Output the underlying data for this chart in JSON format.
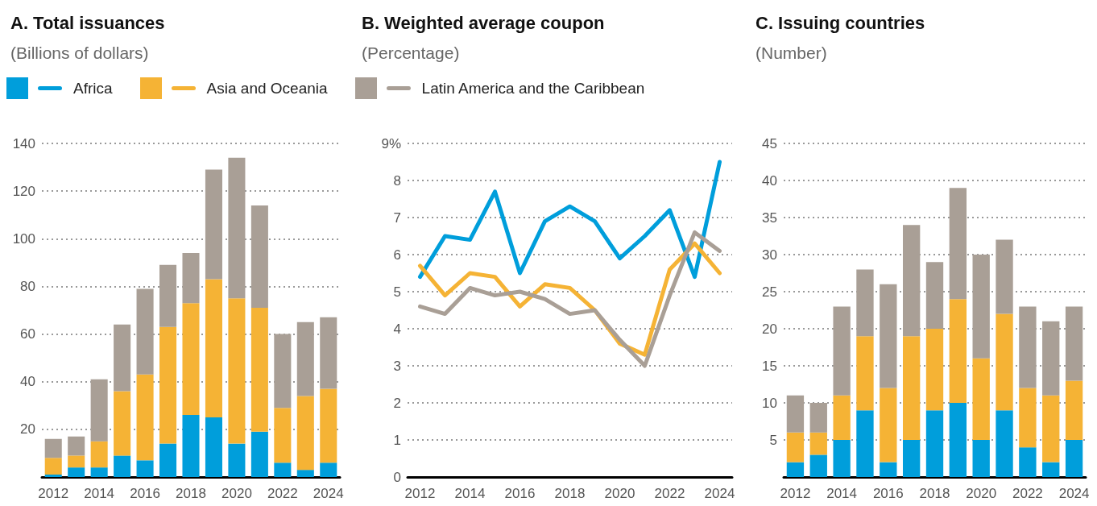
{
  "chart_data": [
    {
      "type": "bar",
      "title": "A. Total issuances",
      "subtitle": "(Billions of dollars)",
      "stacked": true,
      "grid": "y",
      "legend": "top",
      "categories": [
        "2012",
        null,
        "2014",
        null,
        "2016",
        null,
        "2018",
        null,
        "2020",
        null,
        "2022",
        null,
        "2024"
      ],
      "ylim": [
        0,
        140
      ],
      "yticks": [
        20,
        40,
        60,
        80,
        100,
        120,
        140
      ],
      "series": [
        {
          "name": "Africa",
          "color": "#009edb",
          "values": [
            1,
            4,
            4,
            9,
            7,
            14,
            26,
            25,
            14,
            19,
            6,
            3,
            6
          ]
        },
        {
          "name": "Asia and Oceania",
          "color": "#f5b335",
          "values": [
            7,
            5,
            11,
            27,
            36,
            49,
            47,
            58,
            61,
            52,
            23,
            31,
            31
          ]
        },
        {
          "name": "Latin America and the Caribbean",
          "color": "#a99f96",
          "values": [
            8,
            8,
            26,
            28,
            36,
            26,
            21,
            46,
            59,
            43,
            31,
            31,
            30
          ]
        }
      ]
    },
    {
      "type": "line",
      "title": "B. Weighted average coupon",
      "subtitle": "(Percentage)",
      "grid": "y",
      "marker": "none",
      "categories": [
        "2012",
        null,
        "2014",
        null,
        "2016",
        null,
        "2018",
        null,
        "2020",
        null,
        "2022",
        null,
        "2024"
      ],
      "ylim": [
        0,
        9
      ],
      "yticks": [
        0,
        1,
        2,
        3,
        4,
        5,
        6,
        7,
        8,
        {
          "value": 9,
          "label": "9%"
        }
      ],
      "series": [
        {
          "color": "#009edb",
          "values": [
            5.4,
            6.5,
            6.4,
            7.7,
            5.5,
            6.9,
            7.3,
            6.9,
            5.9,
            6.5,
            7.2,
            5.4,
            8.5
          ]
        },
        {
          "color": "#f5b335",
          "values": [
            5.7,
            4.9,
            5.5,
            5.4,
            4.6,
            5.2,
            5.1,
            4.5,
            3.6,
            3.3,
            5.6,
            6.3,
            5.5
          ]
        },
        {
          "color": "#a99f96",
          "values": [
            4.6,
            4.4,
            5.1,
            4.9,
            5.0,
            4.8,
            4.4,
            4.5,
            3.7,
            3.0,
            4.9,
            6.6,
            6.1
          ]
        }
      ]
    },
    {
      "type": "bar",
      "title": "C. Issuing countries",
      "subtitle": "(Number)",
      "stacked": true,
      "grid": "y",
      "categories": [
        "2012",
        null,
        "2014",
        null,
        "2016",
        null,
        "2018",
        null,
        "2020",
        null,
        "2022",
        null,
        "2024"
      ],
      "ylim": [
        0,
        45
      ],
      "yticks": [
        5,
        10,
        15,
        20,
        25,
        30,
        35,
        40,
        45
      ],
      "series": [
        {
          "color": "#009edb",
          "values": [
            2,
            3,
            5,
            9,
            2,
            5,
            9,
            10,
            5,
            9,
            4,
            2,
            5
          ]
        },
        {
          "color": "#f5b335",
          "values": [
            4,
            3,
            6,
            10,
            10,
            14,
            11,
            14,
            11,
            13,
            8,
            9,
            8
          ]
        },
        {
          "color": "#a99f96",
          "values": [
            5,
            4,
            12,
            9,
            14,
            15,
            9,
            15,
            14,
            10,
            11,
            10,
            10
          ]
        }
      ]
    }
  ]
}
